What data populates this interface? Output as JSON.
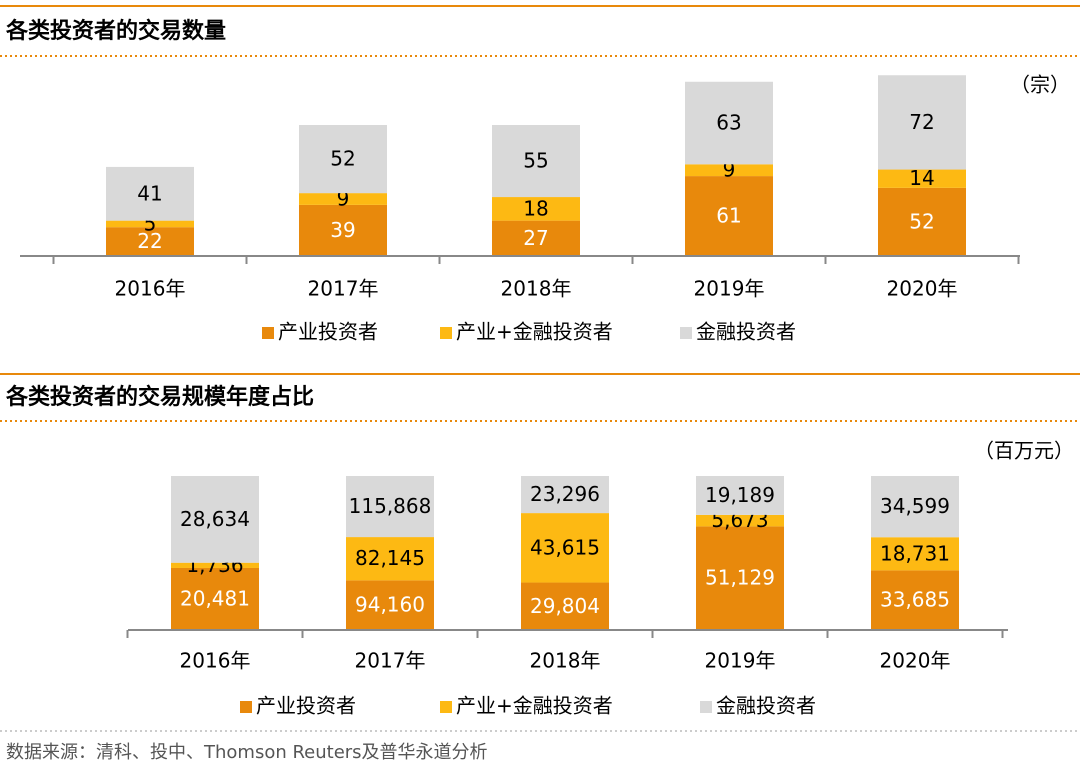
{
  "chart_data": [
    {
      "type": "bar",
      "stacked": true,
      "title": "各类投资者的交易数量",
      "unit": "（宗）",
      "categories": [
        "2016年",
        "2017年",
        "2018年",
        "2019年",
        "2020年"
      ],
      "series": [
        {
          "name": "产业投资者",
          "color": "#e8890c",
          "values": [
            22,
            39,
            27,
            61,
            52
          ]
        },
        {
          "name": "产业+金融投资者",
          "color": "#fdb913",
          "values": [
            5,
            9,
            18,
            9,
            14
          ]
        },
        {
          "name": "金融投资者",
          "color": "#d9d9d9",
          "values": [
            41,
            52,
            55,
            63,
            72
          ]
        }
      ]
    },
    {
      "type": "bar",
      "stacked": true,
      "normalize": true,
      "title": "各类投资者的交易规模年度占比",
      "unit": "（百万元）",
      "categories": [
        "2016年",
        "2017年",
        "2018年",
        "2019年",
        "2020年"
      ],
      "series": [
        {
          "name": "产业投资者",
          "color": "#e8890c",
          "values": [
            20481,
            94160,
            29804,
            51129,
            33685
          ],
          "value_labels": [
            "20,481",
            "94,160",
            "29,804",
            "51,129",
            "33,685"
          ]
        },
        {
          "name": "产业+金融投资者",
          "color": "#fdb913",
          "values": [
            1736,
            82145,
            43615,
            5673,
            18731
          ],
          "value_labels": [
            "1,736",
            "82,145",
            "43,615",
            "5,673",
            "18,731"
          ]
        },
        {
          "name": "金融投资者",
          "color": "#d9d9d9",
          "values": [
            28634,
            115868,
            23296,
            19189,
            34599
          ],
          "value_labels": [
            "28,634",
            "115,868",
            "23,296",
            "19,189",
            "34,599"
          ]
        }
      ]
    }
  ],
  "source": "数据来源：清科、投中、Thomson Reuters及普华永道分析"
}
